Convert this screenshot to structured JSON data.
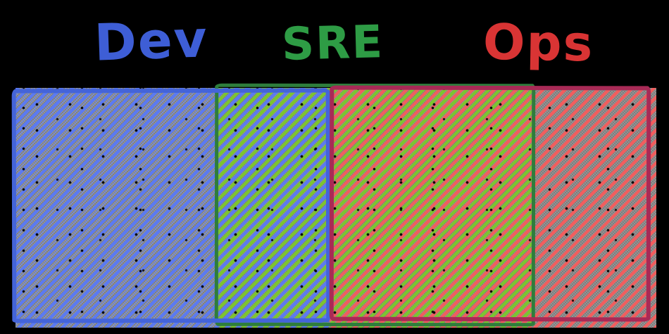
{
  "diagram": {
    "kind": "hand-drawn overlapping-sets band",
    "background_color": "#000000",
    "labels": {
      "dev": {
        "text": "Dev",
        "color": "#3e5ed6"
      },
      "sre": {
        "text": "SRE",
        "color": "#2e9c45"
      },
      "ops": {
        "text": "Ops",
        "color": "#d93434"
      }
    },
    "sets": [
      {
        "name": "Dev",
        "stroke_color": "#4464d9",
        "hatch_color": "#5b7af2"
      },
      {
        "name": "SRE",
        "stroke_color": "#2e7d3c",
        "hatch_color": "#7cc52f"
      },
      {
        "name": "Ops",
        "stroke_color": "#a82a56",
        "hatch_color": "#f15e5e"
      }
    ],
    "regions": [
      {
        "id": "dev-only",
        "sets": [
          "Dev"
        ]
      },
      {
        "id": "dev-sre-overlap",
        "sets": [
          "Dev",
          "SRE"
        ]
      },
      {
        "id": "sre-ops-overlap",
        "sets": [
          "SRE",
          "Ops"
        ]
      },
      {
        "id": "ops-only",
        "sets": [
          "Ops"
        ]
      }
    ]
  }
}
